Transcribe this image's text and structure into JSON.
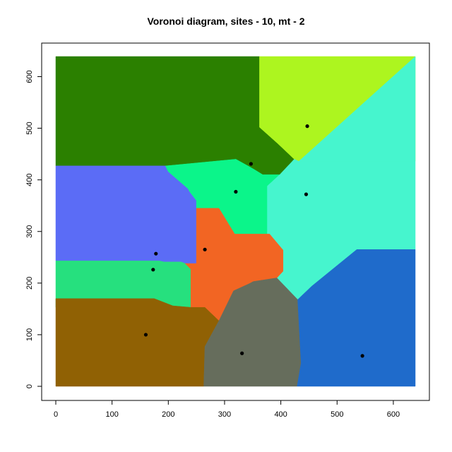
{
  "chart_data": {
    "type": "voronoi",
    "title": "Voronoi diagram, sites - 10, mt - 2",
    "xlabel": "",
    "ylabel": "",
    "xlim": [
      0,
      639
    ],
    "ylim": [
      0,
      639
    ],
    "x_ticks": [
      0,
      100,
      200,
      300,
      400,
      500,
      600
    ],
    "y_ticks": [
      0,
      100,
      200,
      300,
      400,
      500,
      600
    ],
    "grid": false,
    "sites": [
      {
        "x": 347,
        "y": 431
      },
      {
        "x": 447,
        "y": 504
      },
      {
        "x": 320,
        "y": 377
      },
      {
        "x": 445,
        "y": 372
      },
      {
        "x": 178,
        "y": 257
      },
      {
        "x": 173,
        "y": 226
      },
      {
        "x": 265,
        "y": 265
      },
      {
        "x": 160,
        "y": 100
      },
      {
        "x": 331,
        "y": 64
      },
      {
        "x": 545,
        "y": 59
      }
    ],
    "regions": [
      {
        "color": "#2b8000",
        "polygon": [
          [
            0,
            639
          ],
          [
            362,
            639
          ],
          [
            362,
            502
          ],
          [
            395,
            470
          ],
          [
            424,
            440
          ],
          [
            398,
            410
          ],
          [
            368,
            410
          ],
          [
            353,
            420
          ],
          [
            345,
            425
          ],
          [
            320,
            440
          ],
          [
            195,
            427
          ],
          [
            0,
            427
          ]
        ]
      },
      {
        "color": "#adf51f",
        "polygon": [
          [
            362,
            639
          ],
          [
            639,
            639
          ],
          [
            639,
            436
          ],
          [
            432,
            436
          ],
          [
            424,
            440
          ],
          [
            395,
            470
          ],
          [
            362,
            502
          ]
        ]
      },
      {
        "color": "#5b6cf6",
        "polygon": [
          [
            0,
            427
          ],
          [
            195,
            427
          ],
          [
            200,
            416
          ],
          [
            235,
            383
          ],
          [
            238,
            377
          ],
          [
            250,
            360
          ],
          [
            250,
            238
          ],
          [
            230,
            238
          ],
          [
            223,
            241
          ],
          [
            193,
            241
          ],
          [
            184,
            243
          ],
          [
            0,
            243
          ]
        ]
      },
      {
        "color": "#0bf58a",
        "polygon": [
          [
            195,
            427
          ],
          [
            320,
            440
          ],
          [
            345,
            425
          ],
          [
            353,
            420
          ],
          [
            368,
            410
          ],
          [
            398,
            410
          ],
          [
            376,
            388
          ],
          [
            376,
            295
          ],
          [
            318,
            295
          ],
          [
            290,
            345
          ],
          [
            250,
            345
          ],
          [
            250,
            360
          ],
          [
            238,
            377
          ],
          [
            235,
            383
          ],
          [
            200,
            416
          ]
        ]
      },
      {
        "color": "#46f5ce",
        "polygon": [
          [
            432,
            436
          ],
          [
            639,
            639
          ],
          [
            639,
            436
          ]
        ]
      },
      {
        "color": "#46f5ce",
        "polygon": [
          [
            424,
            440
          ],
          [
            432,
            436
          ],
          [
            639,
            436
          ],
          [
            639,
            265
          ],
          [
            535,
            265
          ],
          [
            455,
            194
          ],
          [
            430,
            168
          ],
          [
            393,
            210
          ],
          [
            404,
            223
          ],
          [
            404,
            264
          ],
          [
            380,
            295
          ],
          [
            376,
            295
          ],
          [
            376,
            388
          ],
          [
            398,
            410
          ]
        ]
      },
      {
        "color": "#26e07e",
        "polygon": [
          [
            0,
            243
          ],
          [
            184,
            243
          ],
          [
            193,
            241
          ],
          [
            223,
            241
          ],
          [
            230,
            238
          ],
          [
            240,
            227
          ],
          [
            240,
            153
          ],
          [
            0,
            153
          ]
        ]
      },
      {
        "color": "#f26523",
        "polygon": [
          [
            250,
            345
          ],
          [
            290,
            345
          ],
          [
            318,
            295
          ],
          [
            376,
            295
          ],
          [
            380,
            295
          ],
          [
            404,
            264
          ],
          [
            404,
            223
          ],
          [
            393,
            210
          ],
          [
            351,
            203
          ],
          [
            344,
            199
          ],
          [
            316,
            185
          ],
          [
            290,
            127
          ],
          [
            265,
            153
          ],
          [
            240,
            153
          ],
          [
            240,
            227
          ],
          [
            230,
            238
          ],
          [
            250,
            238
          ]
        ]
      },
      {
        "color": "#906104",
        "polygon": [
          [
            0,
            170
          ],
          [
            175,
            170
          ],
          [
            208,
            156
          ],
          [
            240,
            153
          ],
          [
            265,
            153
          ],
          [
            290,
            127
          ],
          [
            265,
            77
          ],
          [
            263,
            0
          ],
          [
            0,
            0
          ]
        ]
      },
      {
        "color": "#666d5c",
        "polygon": [
          [
            263,
            0
          ],
          [
            429,
            0
          ],
          [
            436,
            45
          ],
          [
            430,
            168
          ],
          [
            393,
            210
          ],
          [
            351,
            203
          ],
          [
            344,
            199
          ],
          [
            316,
            185
          ],
          [
            290,
            127
          ],
          [
            265,
            77
          ]
        ]
      },
      {
        "color": "#1f6bcb",
        "polygon": [
          [
            429,
            0
          ],
          [
            639,
            0
          ],
          [
            639,
            265
          ],
          [
            535,
            265
          ],
          [
            455,
            194
          ],
          [
            430,
            168
          ],
          [
            436,
            45
          ]
        ]
      }
    ],
    "annotations": []
  }
}
